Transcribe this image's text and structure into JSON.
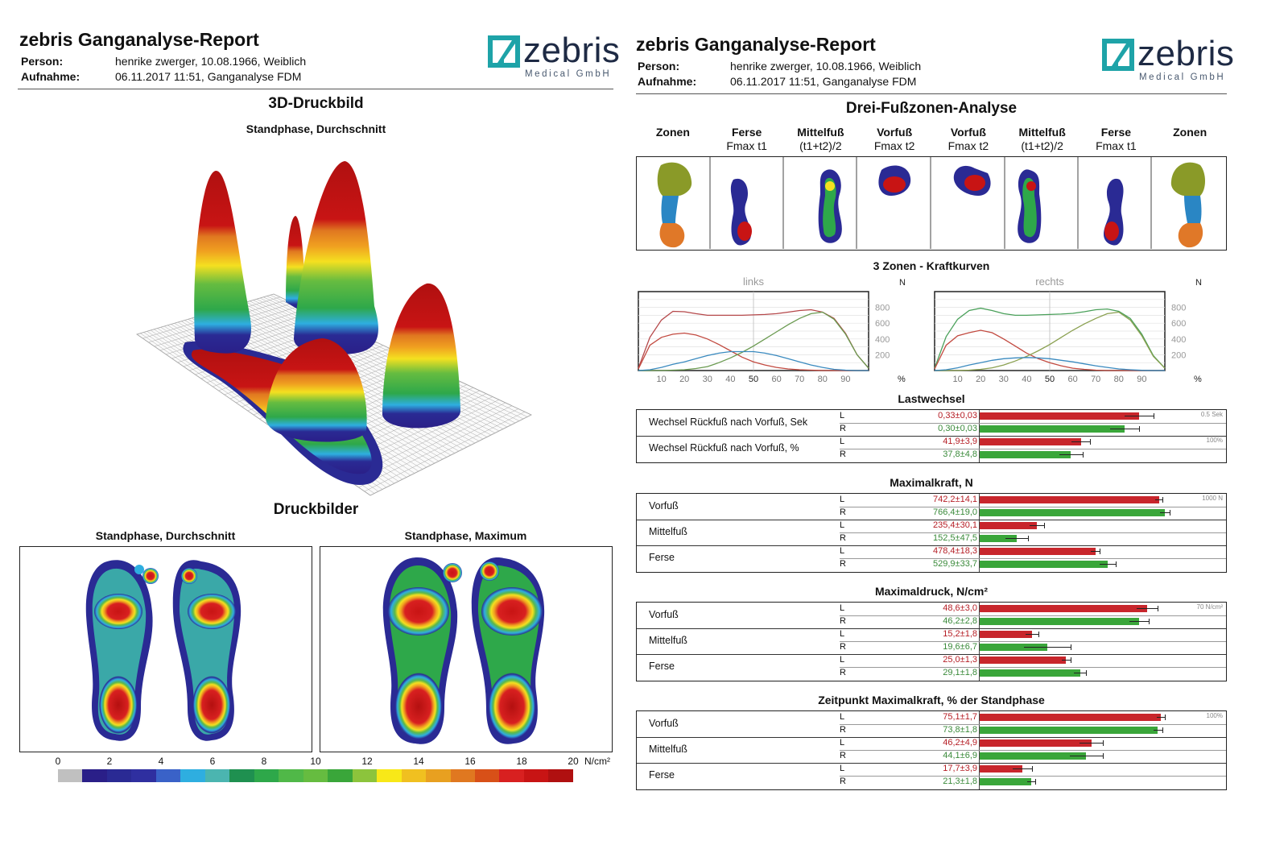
{
  "report_title": "zebris Ganganalyse-Report",
  "person_label": "Person:",
  "person_value": "henrike zwerger, 10.08.1966, Weiblich",
  "recording_label": "Aufnahme:",
  "recording_value": "06.11.2017 11:51, Ganganalyse FDM",
  "logo": {
    "word": "zebris",
    "sub": "Medical GmbH",
    "color": "#1ea3a8"
  },
  "left": {
    "section1_title": "3D-Druckbild",
    "section1_sub": "Standphase, Durchschnitt",
    "section2_title": "Druckbilder",
    "panel_left_title": "Standphase, Durchschnitt",
    "panel_right_title": "Standphase, Maximum",
    "colorbar": {
      "ticks": [
        "0",
        "2",
        "4",
        "6",
        "8",
        "10",
        "12",
        "14",
        "16",
        "18",
        "20"
      ],
      "unit": "N/cm²",
      "colors": [
        "#c0c0c0",
        "#2a1f88",
        "#2a2a94",
        "#2f2fa0",
        "#3a62c8",
        "#2eaee0",
        "#4bb5b0",
        "#1f9050",
        "#2ea84a",
        "#50b848",
        "#66bc40",
        "#3aa63a",
        "#8cc43c",
        "#f8e818",
        "#f0c020",
        "#e8a020",
        "#e07820",
        "#d85018",
        "#d82020",
        "#c81414",
        "#b01010"
      ]
    }
  },
  "right": {
    "section_title": "Drei-Fußzonen-Analyse",
    "zone_headers": [
      {
        "b": "Zonen",
        "s": ""
      },
      {
        "b": "Ferse",
        "s": "Fmax t1"
      },
      {
        "b": "Mittelfuß",
        "s": "(t1+t2)/2"
      },
      {
        "b": "Vorfuß",
        "s": "Fmax t2"
      },
      {
        "b": "Vorfuß",
        "s": "Fmax t2"
      },
      {
        "b": "Mittelfuß",
        "s": "(t1+t2)/2"
      },
      {
        "b": "Ferse",
        "s": "Fmax t1"
      },
      {
        "b": "Zonen",
        "s": ""
      }
    ],
    "curves_title": "3 Zonen - Kraftkurven",
    "curves": [
      {
        "title": "links",
        "unit": "N",
        "xunit": "%"
      },
      {
        "title": "rechts",
        "unit": "N",
        "xunit": "%"
      }
    ],
    "chart_data": [
      {
        "type": "line",
        "title": "links",
        "ylabel": "N",
        "xlabel": "%",
        "x": [
          0,
          5,
          10,
          15,
          20,
          25,
          30,
          35,
          40,
          45,
          50,
          55,
          60,
          65,
          70,
          75,
          80,
          85,
          90,
          95,
          100
        ],
        "xticks": [
          "10",
          "20",
          "30",
          "40",
          "50",
          "60",
          "70",
          "80",
          "90"
        ],
        "yticks": [
          "200",
          "400",
          "600",
          "800"
        ],
        "xlim": [
          0,
          100
        ],
        "ylim": [
          0,
          1000
        ],
        "series": [
          {
            "color": "#b5484a",
            "values": [
              30,
              420,
              640,
              750,
              745,
              720,
              700,
              700,
              700,
              700,
              705,
              710,
              720,
              740,
              760,
              770,
              740,
              660,
              470,
              200,
              30
            ]
          },
          {
            "color": "#c24a40",
            "values": [
              20,
              320,
              420,
              460,
              475,
              450,
              400,
              330,
              250,
              170,
              110,
              70,
              40,
              20,
              10,
              5,
              0,
              0,
              0,
              0,
              0
            ]
          },
          {
            "color": "#6a9a50",
            "values": [
              0,
              0,
              0,
              5,
              10,
              25,
              50,
              100,
              160,
              230,
              310,
              400,
              490,
              580,
              660,
              720,
              740,
              650,
              460,
              200,
              30
            ]
          },
          {
            "color": "#3a8abf",
            "values": [
              0,
              10,
              40,
              80,
              110,
              150,
              190,
              220,
              240,
              240,
              240,
              220,
              190,
              150,
              110,
              70,
              40,
              15,
              5,
              0,
              0
            ]
          }
        ]
      },
      {
        "type": "line",
        "title": "rechts",
        "ylabel": "N",
        "xlabel": "%",
        "x": [
          0,
          5,
          10,
          15,
          20,
          25,
          30,
          35,
          40,
          45,
          50,
          55,
          60,
          65,
          70,
          75,
          80,
          85,
          90,
          95,
          100
        ],
        "xticks": [
          "10",
          "20",
          "30",
          "40",
          "50",
          "60",
          "70",
          "80",
          "90"
        ],
        "yticks": [
          "200",
          "400",
          "600",
          "800"
        ],
        "xlim": [
          0,
          100
        ],
        "ylim": [
          0,
          1000
        ],
        "series": [
          {
            "color": "#4aa05a",
            "values": [
              30,
              430,
              650,
              760,
              790,
              760,
              720,
              700,
              700,
              705,
              710,
              715,
              725,
              745,
              770,
              780,
              750,
              660,
              460,
              190,
              30
            ]
          },
          {
            "color": "#c24a40",
            "values": [
              20,
              320,
              440,
              480,
              510,
              480,
              400,
              310,
              220,
              150,
              100,
              60,
              30,
              15,
              5,
              0,
              0,
              0,
              0,
              0,
              0
            ]
          },
          {
            "color": "#8aa050",
            "values": [
              0,
              0,
              0,
              5,
              15,
              35,
              70,
              120,
              180,
              250,
              330,
              420,
              510,
              590,
              660,
              720,
              740,
              640,
              440,
              180,
              30
            ]
          },
          {
            "color": "#3a8abf",
            "values": [
              0,
              10,
              35,
              70,
              100,
              130,
              150,
              160,
              165,
              160,
              150,
              130,
              110,
              85,
              60,
              40,
              20,
              10,
              3,
              0,
              0
            ]
          }
        ]
      }
    ],
    "tables": [
      {
        "title": "Lastwechsel",
        "groups": [
          {
            "label": "Wechsel Rückfuß nach Vorfuß, Sek",
            "scale": "0.5 Sek",
            "max": 0.5,
            "rows": [
              {
                "lr": "L",
                "text": "0,33±0,03",
                "val": 0.33,
                "err": 0.03
              },
              {
                "lr": "R",
                "text": "0,30±0,03",
                "val": 0.3,
                "err": 0.03
              }
            ]
          },
          {
            "label": "Wechsel Rückfuß nach Vorfuß, %",
            "scale": "100%",
            "max": 100,
            "rows": [
              {
                "lr": "L",
                "text": "41,9±3,9",
                "val": 41.9,
                "err": 3.9
              },
              {
                "lr": "R",
                "text": "37,8±4,8",
                "val": 37.8,
                "err": 4.8
              }
            ]
          }
        ]
      },
      {
        "title": "Maximalkraft, N",
        "scale": "1000 N",
        "max": 1000,
        "groups": [
          {
            "label": "Vorfuß",
            "rows": [
              {
                "lr": "L",
                "text": "742,2±14,1",
                "val": 742.2,
                "err": 14.1
              },
              {
                "lr": "R",
                "text": "766,4±19,0",
                "val": 766.4,
                "err": 19.0
              }
            ]
          },
          {
            "label": "Mittelfuß",
            "rows": [
              {
                "lr": "L",
                "text": "235,4±30,1",
                "val": 235.4,
                "err": 30.1
              },
              {
                "lr": "R",
                "text": "152,5±47,5",
                "val": 152.5,
                "err": 47.5
              }
            ]
          },
          {
            "label": "Ferse",
            "rows": [
              {
                "lr": "L",
                "text": "478,4±18,3",
                "val": 478.4,
                "err": 18.3
              },
              {
                "lr": "R",
                "text": "529,9±33,7",
                "val": 529.9,
                "err": 33.7
              }
            ]
          }
        ]
      },
      {
        "title": "Maximaldruck, N/cm²",
        "scale": "70 N/cm²",
        "max": 70,
        "groups": [
          {
            "label": "Vorfuß",
            "rows": [
              {
                "lr": "L",
                "text": "48,6±3,0",
                "val": 48.6,
                "err": 3.0
              },
              {
                "lr": "R",
                "text": "46,2±2,8",
                "val": 46.2,
                "err": 2.8
              }
            ]
          },
          {
            "label": "Mittelfuß",
            "rows": [
              {
                "lr": "L",
                "text": "15,2±1,8",
                "val": 15.2,
                "err": 1.8
              },
              {
                "lr": "R",
                "text": "19,6±6,7",
                "val": 19.6,
                "err": 6.7
              }
            ]
          },
          {
            "label": "Ferse",
            "rows": [
              {
                "lr": "L",
                "text": "25,0±1,3",
                "val": 25.0,
                "err": 1.3
              },
              {
                "lr": "R",
                "text": "29,1±1,8",
                "val": 29.1,
                "err": 1.8
              }
            ]
          }
        ]
      },
      {
        "title": "Zeitpunkt Maximalkraft, % der Standphase",
        "scale": "100%",
        "max": 100,
        "groups": [
          {
            "label": "Vorfuß",
            "rows": [
              {
                "lr": "L",
                "text": "75,1±1,7",
                "val": 75.1,
                "err": 1.7
              },
              {
                "lr": "R",
                "text": "73,8±1,8",
                "val": 73.8,
                "err": 1.8
              }
            ]
          },
          {
            "label": "Mittelfuß",
            "rows": [
              {
                "lr": "L",
                "text": "46,2±4,9",
                "val": 46.2,
                "err": 4.9
              },
              {
                "lr": "R",
                "text": "44,1±6,9",
                "val": 44.1,
                "err": 6.9
              }
            ]
          },
          {
            "label": "Ferse",
            "rows": [
              {
                "lr": "L",
                "text": "17,7±3,9",
                "val": 17.7,
                "err": 3.9
              },
              {
                "lr": "R",
                "text": "21,3±1,8",
                "val": 21.3,
                "err": 1.8
              }
            ]
          }
        ]
      }
    ]
  }
}
